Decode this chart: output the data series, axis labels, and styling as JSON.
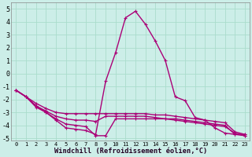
{
  "xlabel": "Windchill (Refroidissement éolien,°C)",
  "background_color": "#cceee8",
  "grid_color": "#aaddcc",
  "line_color": "#aa0077",
  "xlim": [
    -0.5,
    23.5
  ],
  "ylim": [
    -5.2,
    5.5
  ],
  "yticks": [
    -5,
    -4,
    -3,
    -2,
    -1,
    0,
    1,
    2,
    3,
    4,
    5
  ],
  "xticks": [
    0,
    1,
    2,
    3,
    4,
    5,
    6,
    7,
    8,
    9,
    10,
    11,
    12,
    13,
    14,
    15,
    16,
    17,
    18,
    19,
    20,
    21,
    22,
    23
  ],
  "series": [
    {
      "x": [
        0,
        1,
        2,
        3,
        4,
        5,
        6,
        7,
        8,
        9,
        10,
        11,
        12,
        13,
        14,
        15,
        16,
        17,
        18,
        19,
        20,
        21,
        22,
        23
      ],
      "y": [
        -1.3,
        -1.8,
        -2.5,
        -3.0,
        -3.6,
        -4.2,
        -4.3,
        -4.4,
        -4.7,
        -0.6,
        1.6,
        4.3,
        4.8,
        3.8,
        2.5,
        1.0,
        -1.8,
        -2.1,
        -3.4,
        -3.6,
        -4.2,
        -4.6,
        -4.7,
        -4.7
      ]
    },
    {
      "x": [
        0,
        1,
        2,
        3,
        4,
        5,
        6,
        7,
        8,
        9,
        10,
        11,
        12,
        13,
        14,
        15,
        16,
        17,
        18,
        19,
        20,
        21,
        22,
        23
      ],
      "y": [
        -1.3,
        -1.8,
        -2.3,
        -2.7,
        -3.0,
        -3.1,
        -3.1,
        -3.1,
        -3.1,
        -3.1,
        -3.1,
        -3.1,
        -3.1,
        -3.1,
        -3.2,
        -3.2,
        -3.3,
        -3.4,
        -3.5,
        -3.6,
        -3.7,
        -3.8,
        -4.5,
        -4.7
      ]
    },
    {
      "x": [
        0,
        1,
        2,
        3,
        4,
        5,
        6,
        7,
        8,
        9,
        10,
        11,
        12,
        13,
        14,
        15,
        16,
        17,
        18,
        19,
        20,
        21,
        22,
        23
      ],
      "y": [
        -1.3,
        -1.8,
        -2.5,
        -2.9,
        -3.3,
        -3.5,
        -3.6,
        -3.6,
        -3.7,
        -3.3,
        -3.3,
        -3.3,
        -3.3,
        -3.3,
        -3.4,
        -3.5,
        -3.6,
        -3.7,
        -3.8,
        -3.9,
        -4.0,
        -4.1,
        -4.6,
        -4.8
      ]
    },
    {
      "x": [
        0,
        1,
        2,
        3,
        4,
        5,
        6,
        7,
        8,
        9,
        10,
        11,
        12,
        13,
        14,
        15,
        16,
        17,
        18,
        19,
        20,
        21,
        22,
        23
      ],
      "y": [
        -1.3,
        -1.8,
        -2.6,
        -3.0,
        -3.5,
        -3.9,
        -4.0,
        -4.1,
        -4.8,
        -4.8,
        -3.5,
        -3.5,
        -3.5,
        -3.5,
        -3.5,
        -3.5,
        -3.5,
        -3.6,
        -3.7,
        -3.8,
        -3.9,
        -4.0,
        -4.7,
        -4.8
      ]
    }
  ]
}
